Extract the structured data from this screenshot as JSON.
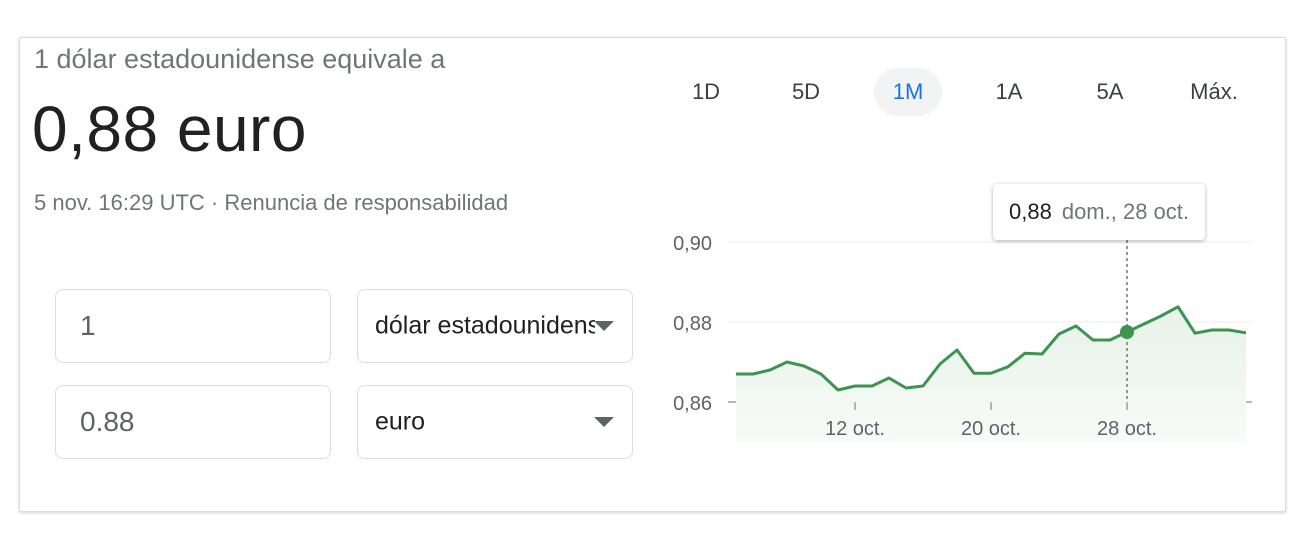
{
  "header": {
    "subtitle": "1 dólar estadounidense equivale a",
    "result": "0,88 euro",
    "timestamp": "5 nov. 16:29 UTC",
    "separator": " · ",
    "disclaimer": "Renuncia de responsabilidad"
  },
  "converter": {
    "from_amount": "1",
    "from_currency": "dólar estadounidense",
    "to_amount": "0.88",
    "to_currency": "euro"
  },
  "range_tabs": [
    {
      "label": "1D",
      "active": false
    },
    {
      "label": "5D",
      "active": false
    },
    {
      "label": "1M",
      "active": true
    },
    {
      "label": "1A",
      "active": false
    },
    {
      "label": "5A",
      "active": false
    },
    {
      "label": "Máx.",
      "active": false
    }
  ],
  "tooltip": {
    "value": "0,88",
    "date": "dom., 28 oct."
  },
  "colors": {
    "line": "#3d9451",
    "active_tab": "#1a73e8"
  },
  "chart_data": {
    "type": "line",
    "y_tick_labels": [
      "0,90",
      "0,88",
      "0,86"
    ],
    "y_ticks": [
      0.9,
      0.88,
      0.86
    ],
    "ylim": [
      0.86,
      0.9
    ],
    "x_tick_labels": [
      "12 oct.",
      "20 oct.",
      "28 oct."
    ],
    "x_tick_days": [
      12,
      20,
      28
    ],
    "x_range_days": [
      5,
      35
    ],
    "highlight": {
      "day": 28,
      "value": 0.8775
    },
    "series": [
      {
        "x_days": [
          5,
          6,
          7,
          8,
          9,
          10,
          11,
          12,
          13,
          14,
          15,
          16,
          17,
          18,
          19,
          20,
          21,
          22,
          23,
          24,
          25,
          26,
          27,
          28,
          29,
          30,
          31,
          32,
          33,
          34,
          35
        ],
        "values": [
          0.867,
          0.867,
          0.868,
          0.87,
          0.869,
          0.867,
          0.863,
          0.864,
          0.864,
          0.866,
          0.8635,
          0.864,
          0.8695,
          0.873,
          0.8672,
          0.8672,
          0.8688,
          0.8722,
          0.872,
          0.877,
          0.879,
          0.8755,
          0.8755,
          0.8775,
          0.8795,
          0.8815,
          0.8838,
          0.8772,
          0.878,
          0.878,
          0.8773
        ]
      }
    ]
  }
}
